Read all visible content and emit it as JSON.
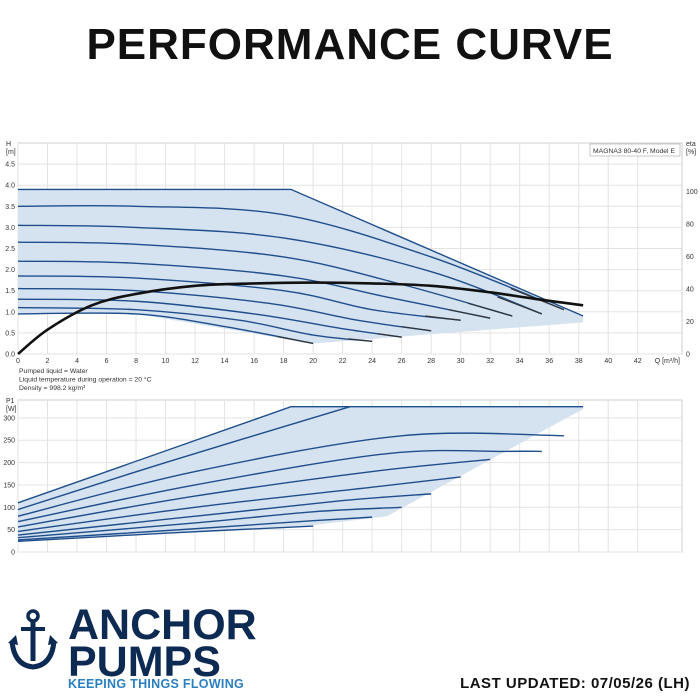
{
  "header": {
    "title": "PERFORMANCE CURVE"
  },
  "footer": {
    "brand_line1": "ANCHOR",
    "brand_line2": "PUMPS",
    "tagline": "KEEPING THINGS FLOWING",
    "updated": "LAST UPDATED: 07/05/26 (LH)"
  },
  "colors": {
    "curve": "#1f4e8c",
    "envelope_fill": "#d5e2ef",
    "efficiency": "#111111",
    "grid": "#e3e3e3",
    "brand": "#0d2a52",
    "tagline": "#2a7fc1"
  },
  "chart_data": [
    {
      "type": "line",
      "model_label": "MAGNA3 80-40 F, Model E",
      "ylabel_top": "H",
      "ylabel_unit": "[m]",
      "y2label_top": "eta",
      "y2label_unit": "[%]",
      "xlabel": "Q [m³/h]",
      "xlim": [
        0,
        45
      ],
      "ylim": [
        0,
        5.0
      ],
      "y2lim": [
        0,
        130
      ],
      "x_ticks": [
        0,
        2,
        4,
        6,
        8,
        10,
        12,
        14,
        16,
        18,
        20,
        22,
        24,
        26,
        28,
        30,
        32,
        34,
        36,
        38,
        40,
        42
      ],
      "y_ticks": [
        0.0,
        0.5,
        1.0,
        1.5,
        2.0,
        2.5,
        3.0,
        3.5,
        4.0,
        4.5
      ],
      "y2_ticks": [
        0,
        20,
        40,
        60,
        80,
        100
      ],
      "envelope": {
        "upper": [
          [
            0,
            3.9
          ],
          [
            18.5,
            3.9
          ],
          [
            38.3,
            0.9
          ]
        ],
        "lower": [
          [
            0,
            0.95
          ],
          [
            8,
            0.95
          ],
          [
            20,
            0.25
          ],
          [
            38.3,
            0.75
          ]
        ]
      },
      "series": [
        {
          "values": [
            [
              0,
              3.9
            ],
            [
              18.5,
              3.9
            ],
            [
              38.3,
              0.9
            ]
          ]
        },
        {
          "values": [
            [
              0,
              3.5
            ],
            [
              8,
              3.5
            ],
            [
              18,
              3.3
            ],
            [
              28,
              2.3
            ],
            [
              37,
              1.05
            ]
          ]
        },
        {
          "values": [
            [
              0,
              3.05
            ],
            [
              8,
              3.0
            ],
            [
              18,
              2.75
            ],
            [
              28,
              1.95
            ],
            [
              35.5,
              0.95
            ]
          ]
        },
        {
          "values": [
            [
              0,
              2.65
            ],
            [
              8,
              2.6
            ],
            [
              18,
              2.3
            ],
            [
              26,
              1.65
            ],
            [
              33.5,
              0.9
            ]
          ]
        },
        {
          "values": [
            [
              0,
              2.2
            ],
            [
              8,
              2.15
            ],
            [
              18,
              1.85
            ],
            [
              25,
              1.35
            ],
            [
              32,
              0.85
            ]
          ]
        },
        {
          "values": [
            [
              0,
              1.85
            ],
            [
              8,
              1.8
            ],
            [
              18,
              1.5
            ],
            [
              24,
              1.05
            ],
            [
              30,
              0.8
            ]
          ]
        },
        {
          "values": [
            [
              0,
              1.55
            ],
            [
              8,
              1.5
            ],
            [
              17,
              1.2
            ],
            [
              23,
              0.8
            ],
            [
              28,
              0.55
            ]
          ]
        },
        {
          "values": [
            [
              0,
              1.3
            ],
            [
              8,
              1.25
            ],
            [
              16,
              0.95
            ],
            [
              22,
              0.6
            ],
            [
              26,
              0.4
            ]
          ]
        },
        {
          "values": [
            [
              0,
              1.1
            ],
            [
              8,
              1.05
            ],
            [
              15,
              0.8
            ],
            [
              20,
              0.45
            ],
            [
              24,
              0.3
            ]
          ]
        },
        {
          "values": [
            [
              0,
              0.95
            ],
            [
              8,
              0.95
            ],
            [
              14,
              0.65
            ],
            [
              20,
              0.25
            ]
          ]
        }
      ],
      "efficiency": [
        [
          0,
          0
        ],
        [
          2,
          15
        ],
        [
          5,
          30
        ],
        [
          8,
          37
        ],
        [
          12,
          42
        ],
        [
          16,
          43.5
        ],
        [
          20,
          44
        ],
        [
          24,
          43.5
        ],
        [
          28,
          42
        ],
        [
          32,
          38
        ],
        [
          35,
          34
        ],
        [
          38.3,
          30
        ]
      ]
    },
    {
      "type": "line",
      "ylabel_top": "P1",
      "ylabel_unit": "[W]",
      "xlim": [
        0,
        45
      ],
      "ylim": [
        0,
        340
      ],
      "y_ticks": [
        0,
        50,
        100,
        150,
        200,
        250,
        300
      ],
      "notes": [
        "Pumped liquid = Water",
        "Liquid temperature during operation = 20 °C",
        "Density = 998.2 kg/m³"
      ],
      "envelope": {
        "upper": [
          [
            0,
            110
          ],
          [
            18.5,
            325
          ],
          [
            38.3,
            325
          ]
        ],
        "lower": [
          [
            0,
            25
          ],
          [
            20,
            60
          ],
          [
            25,
            80
          ],
          [
            38.3,
            320
          ]
        ]
      },
      "series": [
        {
          "values": [
            [
              0,
              110
            ],
            [
              18.5,
              325
            ],
            [
              38.3,
              325
            ]
          ]
        },
        {
          "values": [
            [
              0,
              95
            ],
            [
              10,
              200
            ],
            [
              22.5,
              325
            ]
          ]
        },
        {
          "values": [
            [
              0,
              80
            ],
            [
              12,
              180
            ],
            [
              26,
              260
            ],
            [
              37,
              260
            ]
          ]
        },
        {
          "values": [
            [
              0,
              68
            ],
            [
              12,
              150
            ],
            [
              25,
              220
            ],
            [
              33,
              225
            ],
            [
              35.5,
              225
            ]
          ]
        },
        {
          "values": [
            [
              0,
              56
            ],
            [
              12,
              125
            ],
            [
              24,
              180
            ],
            [
              32,
              207
            ]
          ]
        },
        {
          "values": [
            [
              0,
              46
            ],
            [
              12,
              100
            ],
            [
              24,
              145
            ],
            [
              30,
              168
            ]
          ]
        },
        {
          "values": [
            [
              0,
              38
            ],
            [
              12,
              80
            ],
            [
              22,
              115
            ],
            [
              28,
              130
            ]
          ]
        },
        {
          "values": [
            [
              0,
              32
            ],
            [
              12,
              65
            ],
            [
              20,
              90
            ],
            [
              26,
              100
            ]
          ]
        },
        {
          "values": [
            [
              0,
              27
            ],
            [
              12,
              52
            ],
            [
              20,
              70
            ],
            [
              24,
              78
            ]
          ]
        },
        {
          "values": [
            [
              0,
              24
            ],
            [
              10,
              42
            ],
            [
              20,
              58
            ]
          ]
        }
      ]
    }
  ]
}
